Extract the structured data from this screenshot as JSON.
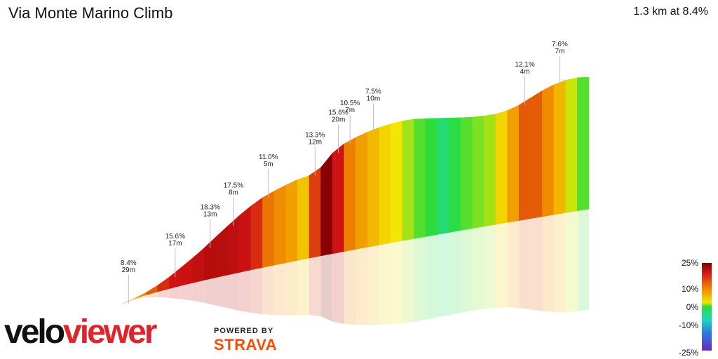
{
  "title": "Via Monte Marino Climb",
  "summary": "1.3 km at 8.4%",
  "branding": {
    "veloviewer_part1": "velo",
    "veloviewer_part2": "viewer",
    "powered_by": "POWERED BY",
    "strava": "STRAVA"
  },
  "legend": {
    "ticks": [
      "25%",
      "10%",
      "0%",
      "-10%",
      "-25%"
    ],
    "gradient": [
      "#7f0000",
      "#d81b1b",
      "#f58a00",
      "#f2e600",
      "#2ddc3a",
      "#18d8c0",
      "#2a7ae0",
      "#6a28c8"
    ]
  },
  "chart_data": {
    "type": "area",
    "title": "Via Monte Marino Climb",
    "subtitle": "1.3 km at 8.4%",
    "color_scale": [
      {
        "grade": 25,
        "color": "#7f0000"
      },
      {
        "grade": 15,
        "color": "#d21414"
      },
      {
        "grade": 10,
        "color": "#f08c00"
      },
      {
        "grade": 5,
        "color": "#f2e600"
      },
      {
        "grade": 0,
        "color": "#2ddc3a"
      },
      {
        "grade": -10,
        "color": "#18d8c0"
      },
      {
        "grade": -25,
        "color": "#6a28c8"
      }
    ],
    "annotations": [
      {
        "grade": "8.4%",
        "length": "29m"
      },
      {
        "grade": "15.6%",
        "length": "17m"
      },
      {
        "grade": "18.3%",
        "length": "13m"
      },
      {
        "grade": "17.5%",
        "length": "8m"
      },
      {
        "grade": "11.0%",
        "length": "5m"
      },
      {
        "grade": "13.3%",
        "length": "12m"
      },
      {
        "grade": "15.6%",
        "length": "20m"
      },
      {
        "grade": "10.5%",
        "length": "7m"
      },
      {
        "grade": "7.5%",
        "length": "10m"
      },
      {
        "grade": "12.1%",
        "length": "4m"
      },
      {
        "grade": "7.6%",
        "length": "7m"
      }
    ],
    "segments": [
      {
        "grade": 8.4
      },
      {
        "grade": 10
      },
      {
        "grade": 12
      },
      {
        "grade": 14
      },
      {
        "grade": 15.6
      },
      {
        "grade": 16
      },
      {
        "grade": 17
      },
      {
        "grade": 18.3
      },
      {
        "grade": 18
      },
      {
        "grade": 17.5
      },
      {
        "grade": 16
      },
      {
        "grade": 14
      },
      {
        "grade": 11
      },
      {
        "grade": 10
      },
      {
        "grade": 9
      },
      {
        "grade": 7
      },
      {
        "grade": 13.3
      },
      {
        "grade": 24
      },
      {
        "grade": 15.6
      },
      {
        "grade": 10.5
      },
      {
        "grade": 9
      },
      {
        "grade": 7.5
      },
      {
        "grade": 6
      },
      {
        "grade": 5
      },
      {
        "grade": 3
      },
      {
        "grade": 1
      },
      {
        "grade": 0
      },
      {
        "grade": -4
      },
      {
        "grade": -1
      },
      {
        "grade": 1
      },
      {
        "grade": 2
      },
      {
        "grade": 3
      },
      {
        "grade": 6
      },
      {
        "grade": 9
      },
      {
        "grade": 12.1
      },
      {
        "grade": 12
      },
      {
        "grade": 10
      },
      {
        "grade": 7.6
      },
      {
        "grade": 4
      },
      {
        "grade": 1
      }
    ]
  }
}
